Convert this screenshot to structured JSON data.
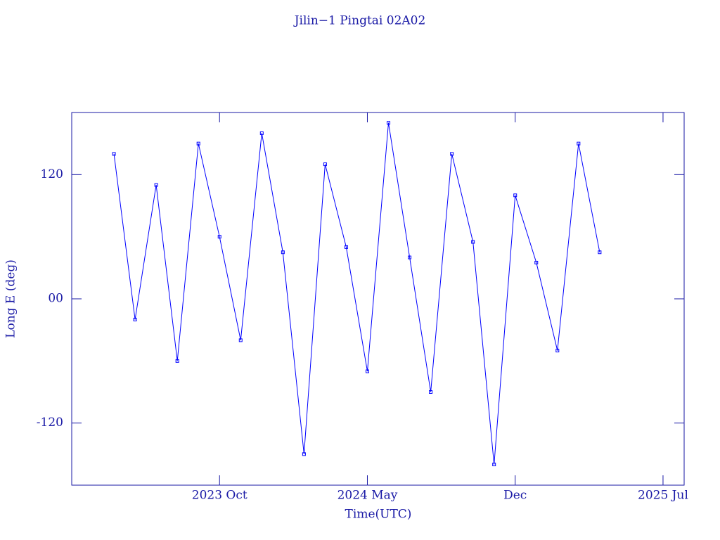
{
  "chart_data": {
    "type": "line",
    "title": "Jilin−1 Pingtai 02A02",
    "x_label": "Time(UTC)",
    "y_label": "Long E (deg)",
    "x": [
      "2023-05",
      "2023-06",
      "2023-07",
      "2023-08",
      "2023-09",
      "2023-10",
      "2023-11",
      "2023-12",
      "2024-01",
      "2024-02",
      "2024-03",
      "2024-04",
      "2024-05",
      "2024-06",
      "2024-07",
      "2024-08",
      "2024-09",
      "2024-10",
      "2024-11",
      "2024-12",
      "2025-01",
      "2025-02",
      "2025-03",
      "2025-04"
    ],
    "series": [
      {
        "name": "Jilin−1 Pingtai 02A02",
        "color": "#0000ff",
        "values": [
          140,
          -20,
          110,
          -60,
          150,
          60,
          -40,
          160,
          45,
          -150,
          130,
          50,
          -70,
          170,
          40,
          -90,
          140,
          55,
          -160,
          100,
          35,
          -50,
          150,
          45
        ]
      }
    ],
    "xlim": [
      "2023-03",
      "2025-08"
    ],
    "xticks": [
      {
        "value": "2023-10",
        "label": "2023 Oct"
      },
      {
        "value": "2024-05",
        "label": "2024 May"
      },
      {
        "value": "2024-12",
        "label": "Dec"
      },
      {
        "value": "2025-07",
        "label": "2025 Jul"
      }
    ],
    "ylim": [
      -180,
      180
    ],
    "yticks": [
      -120,
      {
        "value": 0,
        "label": "00"
      },
      120
    ],
    "grid": false
  }
}
